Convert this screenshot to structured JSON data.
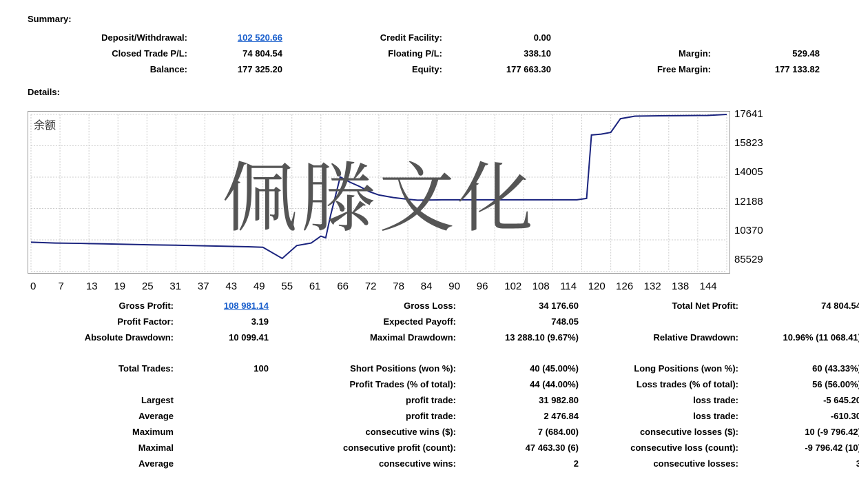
{
  "summary": {
    "title": "Summary:",
    "deposit_withdrawal_label": "Deposit/Withdrawal:",
    "deposit_withdrawal": "102 520.66",
    "credit_facility_label": "Credit Facility:",
    "credit_facility": "0.00",
    "closed_trade_pl_label": "Closed Trade P/L:",
    "closed_trade_pl": "74 804.54",
    "floating_pl_label": "Floating P/L:",
    "floating_pl": "338.10",
    "margin_label": "Margin:",
    "margin": "529.48",
    "balance_label": "Balance:",
    "balance": "177 325.20",
    "equity_label": "Equity:",
    "equity": "177 663.30",
    "free_margin_label": "Free Margin:",
    "free_margin": "177 133.82"
  },
  "details_title": "Details:",
  "chart": {
    "title": "余额",
    "watermark": "佩滕文化",
    "type": "line",
    "x_ticks": [
      "0",
      "7",
      "13",
      "19",
      "25",
      "31",
      "37",
      "43",
      "49",
      "55",
      "61",
      "66",
      "72",
      "78",
      "84",
      "90",
      "96",
      "102",
      "108",
      "114",
      "120",
      "126",
      "132",
      "138",
      "144"
    ],
    "y_ticks": [
      "17641",
      "15823",
      "14005",
      "12188",
      "10370",
      "85529"
    ],
    "y_axis_order": "top_to_bottom",
    "series_color": "#1a237e",
    "grid_color": "#cccccc",
    "border_color": "#999999",
    "background_color": "#ffffff",
    "line_width": 2,
    "points": [
      [
        0,
        102500
      ],
      [
        5,
        102000
      ],
      [
        10,
        101800
      ],
      [
        15,
        101500
      ],
      [
        20,
        101200
      ],
      [
        25,
        100900
      ],
      [
        30,
        100700
      ],
      [
        35,
        100400
      ],
      [
        40,
        100100
      ],
      [
        45,
        99800
      ],
      [
        48,
        99500
      ],
      [
        52,
        93000
      ],
      [
        55,
        100500
      ],
      [
        58,
        102000
      ],
      [
        60,
        106000
      ],
      [
        61,
        105000
      ],
      [
        62,
        118000
      ],
      [
        64,
        140500
      ],
      [
        66,
        137500
      ],
      [
        68,
        135000
      ],
      [
        70,
        132000
      ],
      [
        72,
        130000
      ],
      [
        75,
        128500
      ],
      [
        78,
        127500
      ],
      [
        80,
        127000
      ],
      [
        85,
        127200
      ],
      [
        90,
        127200
      ],
      [
        95,
        127200
      ],
      [
        100,
        127200
      ],
      [
        105,
        127200
      ],
      [
        110,
        127200
      ],
      [
        113,
        127200
      ],
      [
        115,
        128000
      ],
      [
        116,
        165000
      ],
      [
        118,
        165500
      ],
      [
        120,
        166500
      ],
      [
        122,
        174500
      ],
      [
        125,
        176000
      ],
      [
        130,
        176200
      ],
      [
        135,
        176300
      ],
      [
        140,
        176400
      ],
      [
        144,
        177000
      ]
    ],
    "x_range": [
      0,
      144
    ],
    "y_range": [
      85529,
      177000
    ]
  },
  "profit": {
    "gross_profit_label": "Gross Profit:",
    "gross_profit": "108 981.14",
    "gross_loss_label": "Gross Loss:",
    "gross_loss": "34 176.60",
    "total_net_profit_label": "Total Net Profit:",
    "total_net_profit": "74 804.54",
    "profit_factor_label": "Profit Factor:",
    "profit_factor": "3.19",
    "expected_payoff_label": "Expected Payoff:",
    "expected_payoff": "748.05",
    "absolute_drawdown_label": "Absolute Drawdown:",
    "absolute_drawdown": "10 099.41",
    "maximal_drawdown_label": "Maximal Drawdown:",
    "maximal_drawdown": "13 288.10 (9.67%)",
    "relative_drawdown_label": "Relative Drawdown:",
    "relative_drawdown": "10.96% (11 068.41)"
  },
  "trades": {
    "total_trades_label": "Total Trades:",
    "total_trades": "100",
    "short_positions_label": "Short Positions (won %):",
    "short_positions": "40 (45.00%)",
    "long_positions_label": "Long Positions (won %):",
    "long_positions": "60 (43.33%)",
    "profit_trades_label": "Profit Trades (% of total):",
    "profit_trades": "44 (44.00%)",
    "loss_trades_label": "Loss trades (% of total):",
    "loss_trades": "56 (56.00%)",
    "largest_label": "Largest",
    "largest_profit_trade_label": "profit trade:",
    "largest_profit_trade": "31 982.80",
    "largest_loss_trade_label": "loss trade:",
    "largest_loss_trade": "-5 645.20",
    "average_label": "Average",
    "avg_profit_trade_label": "profit trade:",
    "avg_profit_trade": "2 476.84",
    "avg_loss_trade_label": "loss trade:",
    "avg_loss_trade": "-610.30",
    "maximum_label": "Maximum",
    "max_cons_wins_label": "consecutive wins ($):",
    "max_cons_wins": "7 (684.00)",
    "max_cons_losses_label": "consecutive losses ($):",
    "max_cons_losses": "10 (-9 796.42)",
    "maximal_label": "Maximal",
    "maximal_cons_profit_label": "consecutive profit (count):",
    "maximal_cons_profit": "47 463.30 (6)",
    "maximal_cons_loss_label": "consecutive loss (count):",
    "maximal_cons_loss": "-9 796.42 (10)",
    "avg2_label": "Average",
    "avg_cons_wins_label": "consecutive wins:",
    "avg_cons_wins": "2",
    "avg_cons_losses_label": "consecutive losses:",
    "avg_cons_losses": "3"
  }
}
